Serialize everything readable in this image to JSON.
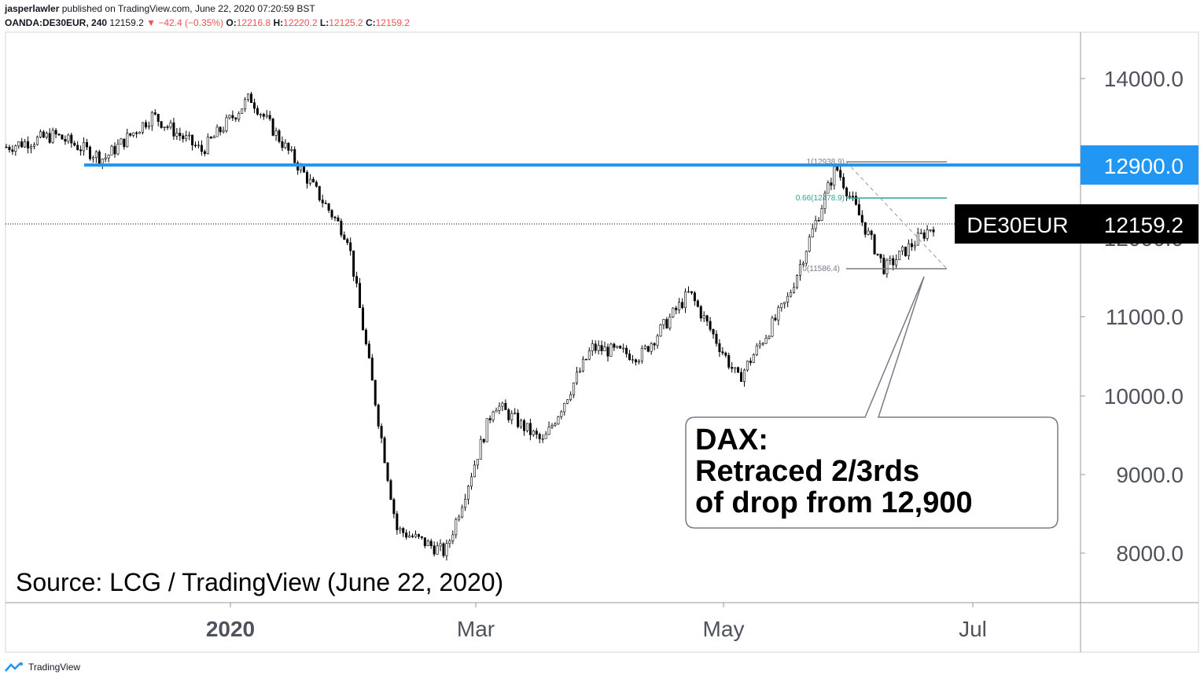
{
  "header": {
    "publisher": "jasperlawler",
    "published_text": "published on TradingView.com, June 22, 2020 07:20:59 BST",
    "symbol": "OANDA:DE30EUR, 240",
    "last": "12159.2",
    "change": "▼ −42.4 (−0.35%)",
    "o_label": "O:",
    "o_value": "12216.8",
    "h_label": "H:",
    "h_value": "12220.2",
    "l_label": "L:",
    "l_value": "12125.2",
    "c_label": "C:",
    "c_value": "12159.2"
  },
  "colors": {
    "candle": "#000000",
    "resistance_line": "#2196f3",
    "price_label_bg": "#2196f3",
    "last_price_bg": "#000000",
    "fib_mid": "#26a69a",
    "fib_level": "#787b86"
  },
  "price_axis": {
    "ticks": [
      "14000.0",
      "11000.0",
      "10000.0",
      "9000.0",
      "8000.0"
    ],
    "partial_tick": "12000.0",
    "resistance_label": "12900.0",
    "last_symbol": "DE30EUR",
    "last_price": "12159.2"
  },
  "time_axis": {
    "labels": [
      "2020",
      "Mar",
      "May",
      "Jul"
    ]
  },
  "fib": {
    "level_1": "1(12938.9)",
    "level_066": "0.66(12478.9)",
    "level_0": "0(11586.4)"
  },
  "annotation": {
    "line1": "DAX:",
    "line2": "Retraced 2/3rds",
    "line3": "of drop from 12,900"
  },
  "source_text": "Source: LCG / TradingView (June 22, 2020)",
  "footer_brand": "TradingView",
  "chart_data": {
    "type": "candlestick",
    "symbol": "OANDA:DE30EUR",
    "interval": "240",
    "ylim": [
      7500,
      14500
    ],
    "x_labels": [
      "2020",
      "Mar",
      "May",
      "Jul"
    ],
    "horizontal_levels": [
      {
        "name": "resistance",
        "value": 12900
      },
      {
        "name": "last",
        "value": 12159.2
      }
    ],
    "fib_levels": [
      {
        "ratio": 1,
        "value": 12938.9
      },
      {
        "ratio": 0.66,
        "value": 12478.9
      },
      {
        "ratio": 0,
        "value": 11586.4
      }
    ],
    "path_approx": [
      {
        "x": "Dec 2019",
        "close": 13150
      },
      {
        "x": "mid Dec",
        "close": 13300
      },
      {
        "x": "early Jan",
        "close": 13000
      },
      {
        "x": "mid Jan",
        "close": 13550
      },
      {
        "x": "late Jan",
        "close": 13100
      },
      {
        "x": "mid Feb",
        "close": 13780
      },
      {
        "x": "late Feb",
        "close": 12900
      },
      {
        "x": "early Mar",
        "close": 12000
      },
      {
        "x": "mid Mar",
        "close": 8300
      },
      {
        "x": "Mar 18",
        "close": 8000
      },
      {
        "x": "late Mar",
        "close": 9900
      },
      {
        "x": "early Apr",
        "close": 9400
      },
      {
        "x": "mid Apr",
        "close": 10600
      },
      {
        "x": "late Apr",
        "close": 10500
      },
      {
        "x": "early May",
        "close": 11300
      },
      {
        "x": "mid May",
        "close": 10200
      },
      {
        "x": "late May",
        "close": 11200
      },
      {
        "x": "early Jun",
        "close": 12900
      },
      {
        "x": "mid Jun",
        "close": 11600
      },
      {
        "x": "Jun 22",
        "close": 12159.2
      }
    ]
  }
}
